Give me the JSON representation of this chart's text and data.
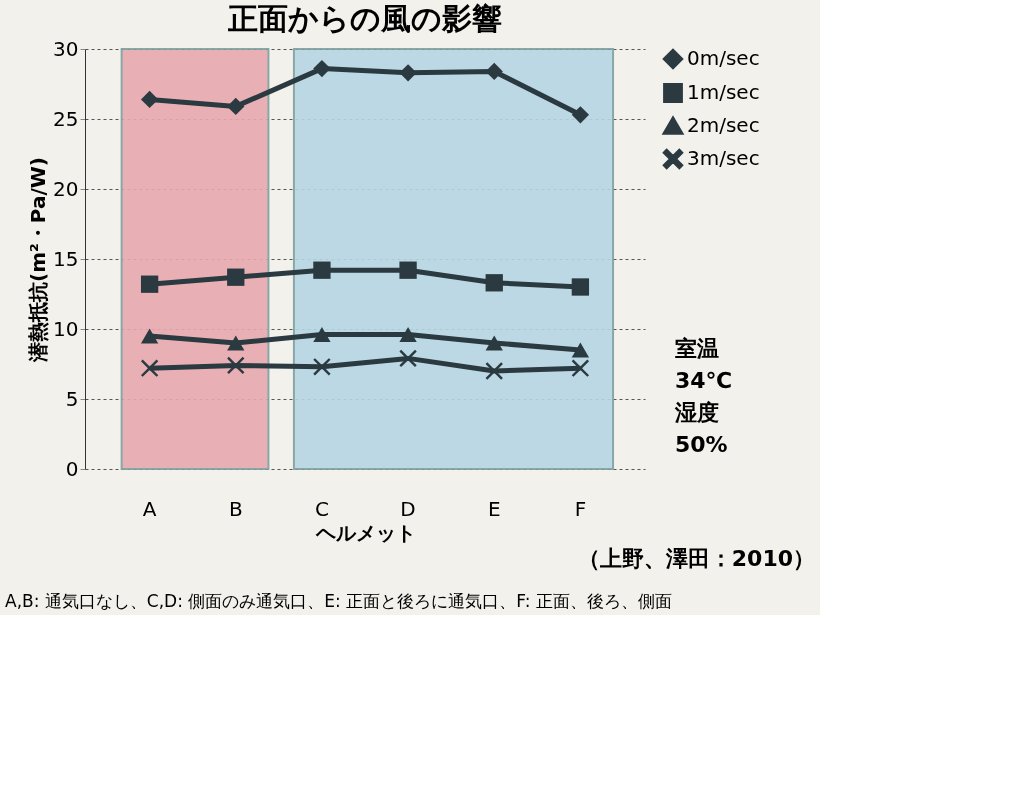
{
  "chart_data": {
    "type": "line",
    "title": "正面からの風の影響",
    "xlabel": "ヘルメット",
    "ylabel": "潜熱抵抗(m²・Pa/W)",
    "categories": [
      "A",
      "B",
      "C",
      "D",
      "E",
      "F"
    ],
    "series": [
      {
        "name": "0m/sec",
        "color": "#2b3a40",
        "marker": "diamond",
        "values": [
          26.4,
          25.9,
          28.6,
          28.3,
          28.4,
          25.3
        ]
      },
      {
        "name": "1m/sec",
        "color": "#2b3a40",
        "marker": "square",
        "values": [
          13.2,
          13.7,
          14.2,
          14.2,
          13.3,
          13.0
        ]
      },
      {
        "name": "2m/sec",
        "color": "#2b3a40",
        "marker": "triangle",
        "values": [
          9.5,
          9.0,
          9.6,
          9.6,
          9.0,
          8.5
        ]
      },
      {
        "name": "3m/sec",
        "color": "#2b3a40",
        "marker": "cross",
        "values": [
          7.2,
          7.4,
          7.3,
          7.9,
          7.0,
          7.2
        ]
      }
    ],
    "ylim": [
      0,
      30
    ],
    "yticks": [
      0,
      5,
      10,
      15,
      20,
      25,
      30
    ],
    "grid": "y",
    "legend": "right",
    "line_style": "solid",
    "bands": [
      {
        "axis": "x",
        "from": "A",
        "to": "B",
        "color": "#e8a9b0"
      },
      {
        "axis": "x",
        "from": "C",
        "to": "F",
        "color": "#b6d6e4"
      }
    ],
    "annotations": [
      "室温\n34℃\n湿度\n50%",
      "（上野、澤田：2010）",
      "A,B: 通気口なし、C,D: 側面のみ通気口、E: 正面と後ろに通気口、F: 正面、後ろ、側面"
    ]
  }
}
